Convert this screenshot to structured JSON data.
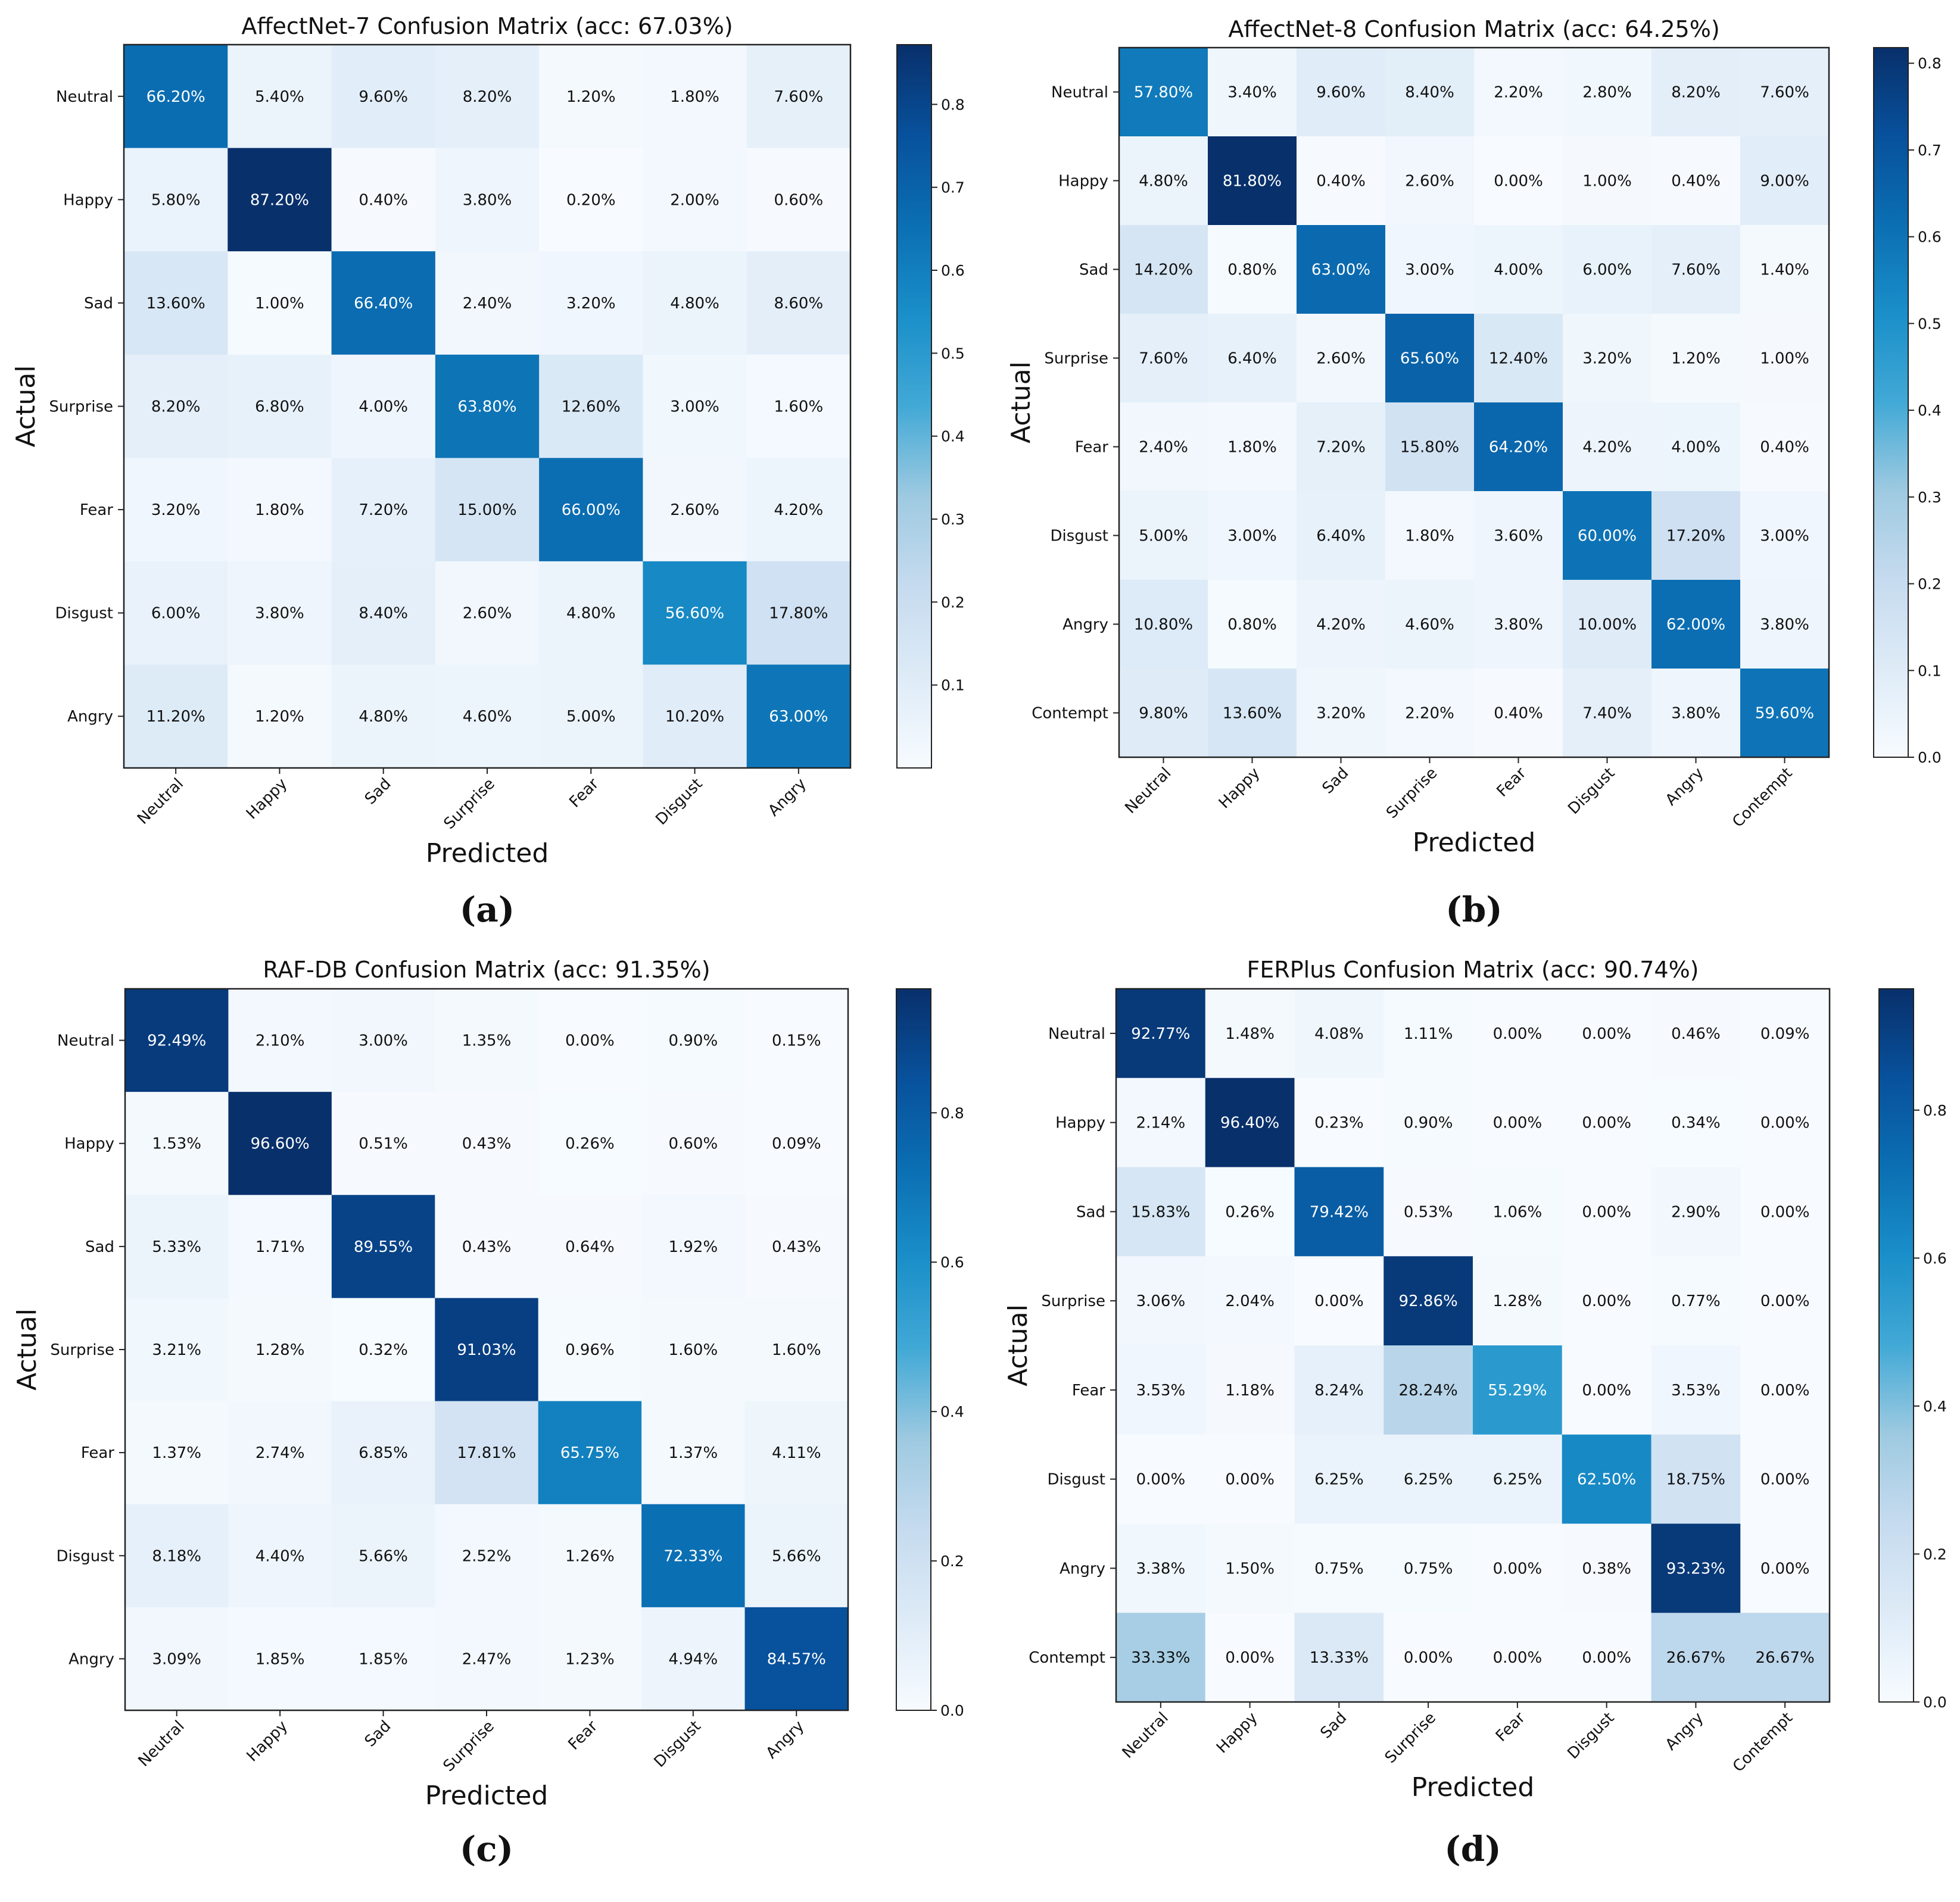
{
  "chart_data": [
    {
      "type": "heatmap",
      "panel_label": "(a)",
      "title": "AffectNet-7  Confusion Matrix (acc: 67.03%)",
      "xlabel": "Predicted",
      "ylabel": "Actual",
      "categories": [
        "Neutral",
        "Happy",
        "Sad",
        "Surprise",
        "Fear",
        "Disgust",
        "Angry"
      ],
      "labels": [
        [
          "66.20%",
          "5.40%",
          "9.60%",
          "8.20%",
          "1.20%",
          "1.80%",
          "7.60%"
        ],
        [
          "5.80%",
          "87.20%",
          "0.40%",
          "3.80%",
          "0.20%",
          "2.00%",
          "0.60%"
        ],
        [
          "13.60%",
          "1.00%",
          "66.40%",
          "2.40%",
          "3.20%",
          "4.80%",
          "8.60%"
        ],
        [
          "8.20%",
          "6.80%",
          "4.00%",
          "63.80%",
          "12.60%",
          "3.00%",
          "1.60%"
        ],
        [
          "3.20%",
          "1.80%",
          "7.20%",
          "15.00%",
          "66.00%",
          "2.60%",
          "4.20%"
        ],
        [
          "6.00%",
          "3.80%",
          "8.40%",
          "2.60%",
          "4.80%",
          "56.60%",
          "17.80%"
        ],
        [
          "11.20%",
          "1.20%",
          "4.80%",
          "4.60%",
          "5.00%",
          "10.20%",
          "63.00%"
        ]
      ],
      "colorbar": {
        "min": 0.0,
        "max": 0.872,
        "ticks": [
          0.1,
          0.2,
          0.3,
          0.4,
          0.5,
          0.6,
          0.7,
          0.8
        ],
        "tick_labels": [
          "0.1",
          "0.2",
          "0.3",
          "0.4",
          "0.5",
          "0.6",
          "0.7",
          "0.8"
        ]
      }
    },
    {
      "type": "heatmap",
      "panel_label": "(b)",
      "title": "AffectNet-8  Confusion Matrix (acc: 64.25%)",
      "xlabel": "Predicted",
      "ylabel": "Actual",
      "categories": [
        "Neutral",
        "Happy",
        "Sad",
        "Surprise",
        "Fear",
        "Disgust",
        "Angry",
        "Contempt"
      ],
      "labels": [
        [
          "57.80%",
          "3.40%",
          "9.60%",
          "8.40%",
          "2.20%",
          "2.80%",
          "8.20%",
          "7.60%"
        ],
        [
          "4.80%",
          "81.80%",
          "0.40%",
          "2.60%",
          "0.00%",
          "1.00%",
          "0.40%",
          "9.00%"
        ],
        [
          "14.20%",
          "0.80%",
          "63.00%",
          "3.00%",
          "4.00%",
          "6.00%",
          "7.60%",
          "1.40%"
        ],
        [
          "7.60%",
          "6.40%",
          "2.60%",
          "65.60%",
          "12.40%",
          "3.20%",
          "1.20%",
          "1.00%"
        ],
        [
          "2.40%",
          "1.80%",
          "7.20%",
          "15.80%",
          "64.20%",
          "4.20%",
          "4.00%",
          "0.40%"
        ],
        [
          "5.00%",
          "3.00%",
          "6.40%",
          "1.80%",
          "3.60%",
          "60.00%",
          "17.20%",
          "3.00%"
        ],
        [
          "10.80%",
          "0.80%",
          "4.20%",
          "4.60%",
          "3.80%",
          "10.00%",
          "62.00%",
          "3.80%"
        ],
        [
          "9.80%",
          "13.60%",
          "3.20%",
          "2.20%",
          "0.40%",
          "7.40%",
          "3.80%",
          "59.60%"
        ]
      ],
      "colorbar": {
        "min": 0.0,
        "max": 0.818,
        "ticks": [
          0.0,
          0.1,
          0.2,
          0.3,
          0.4,
          0.5,
          0.6,
          0.7,
          0.8
        ],
        "tick_labels": [
          "0.0",
          "0.1",
          "0.2",
          "0.3",
          "0.4",
          "0.5",
          "0.6",
          "0.7",
          "0.8"
        ]
      }
    },
    {
      "type": "heatmap",
      "panel_label": "(c)",
      "title": "RAF-DB Confusion Matrix (acc: 91.35%)",
      "xlabel": "Predicted",
      "ylabel": "Actual",
      "categories": [
        "Neutral",
        "Happy",
        "Sad",
        "Surprise",
        "Fear",
        "Disgust",
        "Angry"
      ],
      "labels": [
        [
          "92.49%",
          "2.10%",
          "3.00%",
          "1.35%",
          "0.00%",
          "0.90%",
          "0.15%"
        ],
        [
          "1.53%",
          "96.60%",
          "0.51%",
          "0.43%",
          "0.26%",
          "0.60%",
          "0.09%"
        ],
        [
          "5.33%",
          "1.71%",
          "89.55%",
          "0.43%",
          "0.64%",
          "1.92%",
          "0.43%"
        ],
        [
          "3.21%",
          "1.28%",
          "0.32%",
          "91.03%",
          "0.96%",
          "1.60%",
          "1.60%"
        ],
        [
          "1.37%",
          "2.74%",
          "6.85%",
          "17.81%",
          "65.75%",
          "1.37%",
          "4.11%"
        ],
        [
          "8.18%",
          "4.40%",
          "5.66%",
          "2.52%",
          "1.26%",
          "72.33%",
          "5.66%"
        ],
        [
          "3.09%",
          "1.85%",
          "1.85%",
          "2.47%",
          "1.23%",
          "4.94%",
          "84.57%"
        ]
      ],
      "colorbar": {
        "min": 0.0,
        "max": 0.966,
        "ticks": [
          0.0,
          0.2,
          0.4,
          0.6,
          0.8
        ],
        "tick_labels": [
          "0.0",
          "0.2",
          "0.4",
          "0.6",
          "0.8"
        ]
      }
    },
    {
      "type": "heatmap",
      "panel_label": "(d)",
      "title": "FERPlus  Confusion Matrix (acc: 90.74%)",
      "xlabel": "Predicted",
      "ylabel": "Actual",
      "categories": [
        "Neutral",
        "Happy",
        "Sad",
        "Surprise",
        "Fear",
        "Disgust",
        "Angry",
        "Contempt"
      ],
      "labels": [
        [
          "92.77%",
          "1.48%",
          "4.08%",
          "1.11%",
          "0.00%",
          "0.00%",
          "0.46%",
          "0.09%"
        ],
        [
          "2.14%",
          "96.40%",
          "0.23%",
          "0.90%",
          "0.00%",
          "0.00%",
          "0.34%",
          "0.00%"
        ],
        [
          "15.83%",
          "0.26%",
          "79.42%",
          "0.53%",
          "1.06%",
          "0.00%",
          "2.90%",
          "0.00%"
        ],
        [
          "3.06%",
          "2.04%",
          "0.00%",
          "92.86%",
          "1.28%",
          "0.00%",
          "0.77%",
          "0.00%"
        ],
        [
          "3.53%",
          "1.18%",
          "8.24%",
          "28.24%",
          "55.29%",
          "0.00%",
          "3.53%",
          "0.00%"
        ],
        [
          "0.00%",
          "0.00%",
          "6.25%",
          "6.25%",
          "6.25%",
          "62.50%",
          "18.75%",
          "0.00%"
        ],
        [
          "3.38%",
          "1.50%",
          "0.75%",
          "0.75%",
          "0.00%",
          "0.38%",
          "93.23%",
          "0.00%"
        ],
        [
          "33.33%",
          "0.00%",
          "13.33%",
          "0.00%",
          "0.00%",
          "0.00%",
          "26.67%",
          "26.67%"
        ]
      ],
      "colorbar": {
        "min": 0.0,
        "max": 0.964,
        "ticks": [
          0.0,
          0.2,
          0.4,
          0.6,
          0.8
        ],
        "tick_labels": [
          "0.0",
          "0.2",
          "0.4",
          "0.6",
          "0.8"
        ]
      }
    }
  ]
}
